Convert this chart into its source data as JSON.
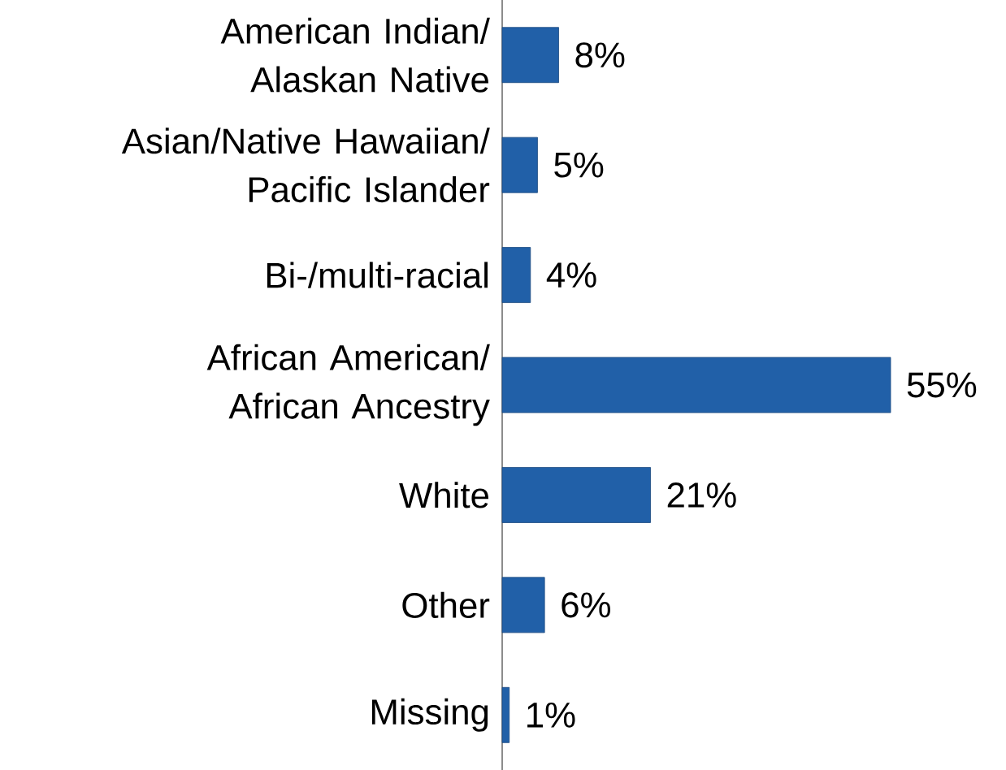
{
  "chart_data": {
    "type": "bar",
    "orientation": "horizontal",
    "categories": [
      "American Indian/ Alaskan Native",
      "Asian/Native Hawaiian/ Pacific Islander",
      "Bi-/multi-racial",
      "African American/ African Ancestry",
      "White",
      "Other",
      "Missing"
    ],
    "values": [
      8,
      5,
      4,
      55,
      21,
      6,
      1
    ],
    "value_labels": [
      "8%",
      "5%",
      "4%",
      "55%",
      "21%",
      "6%",
      "1%"
    ],
    "color": "#2160a8"
  }
}
